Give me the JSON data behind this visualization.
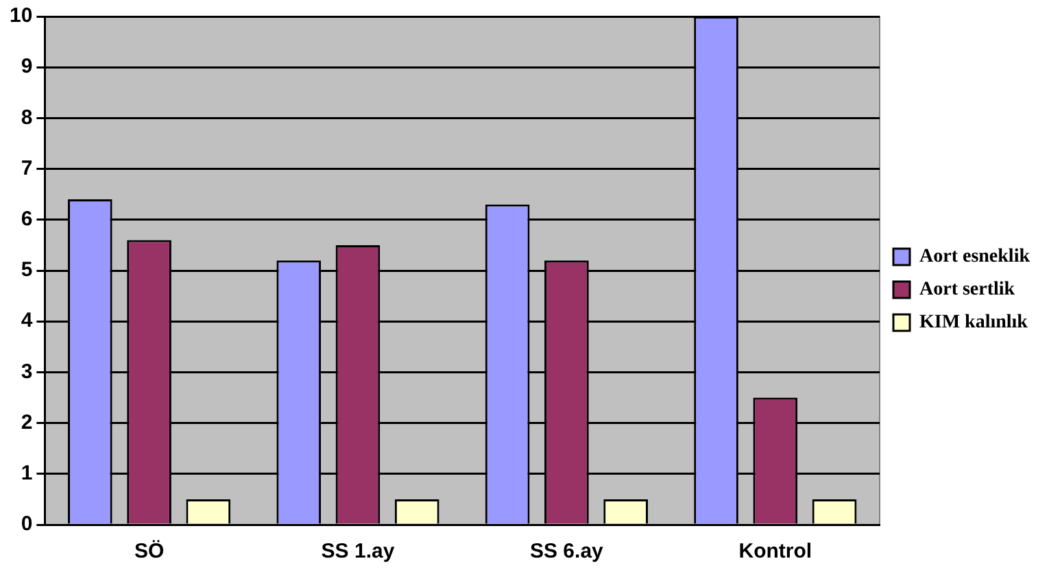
{
  "chart_data": {
    "type": "bar",
    "categories": [
      "SÖ",
      "SS 1.ay",
      "SS 6.ay",
      "Kontrol"
    ],
    "series": [
      {
        "name": "Aort esneklik",
        "color": "#9999ff",
        "values": [
          6.4,
          5.2,
          6.3,
          10
        ]
      },
      {
        "name": "Aort sertlik",
        "color": "#993366",
        "values": [
          5.6,
          5.5,
          5.2,
          2.5
        ]
      },
      {
        "name": "KIM kalınlık",
        "color": "#ffffcc",
        "values": [
          0.5,
          0.5,
          0.5,
          0.5
        ]
      }
    ],
    "ylim": [
      0,
      10
    ],
    "yticks": [
      0,
      1,
      2,
      3,
      4,
      5,
      6,
      7,
      8,
      9,
      10
    ],
    "grid": "y",
    "legend": "right"
  }
}
